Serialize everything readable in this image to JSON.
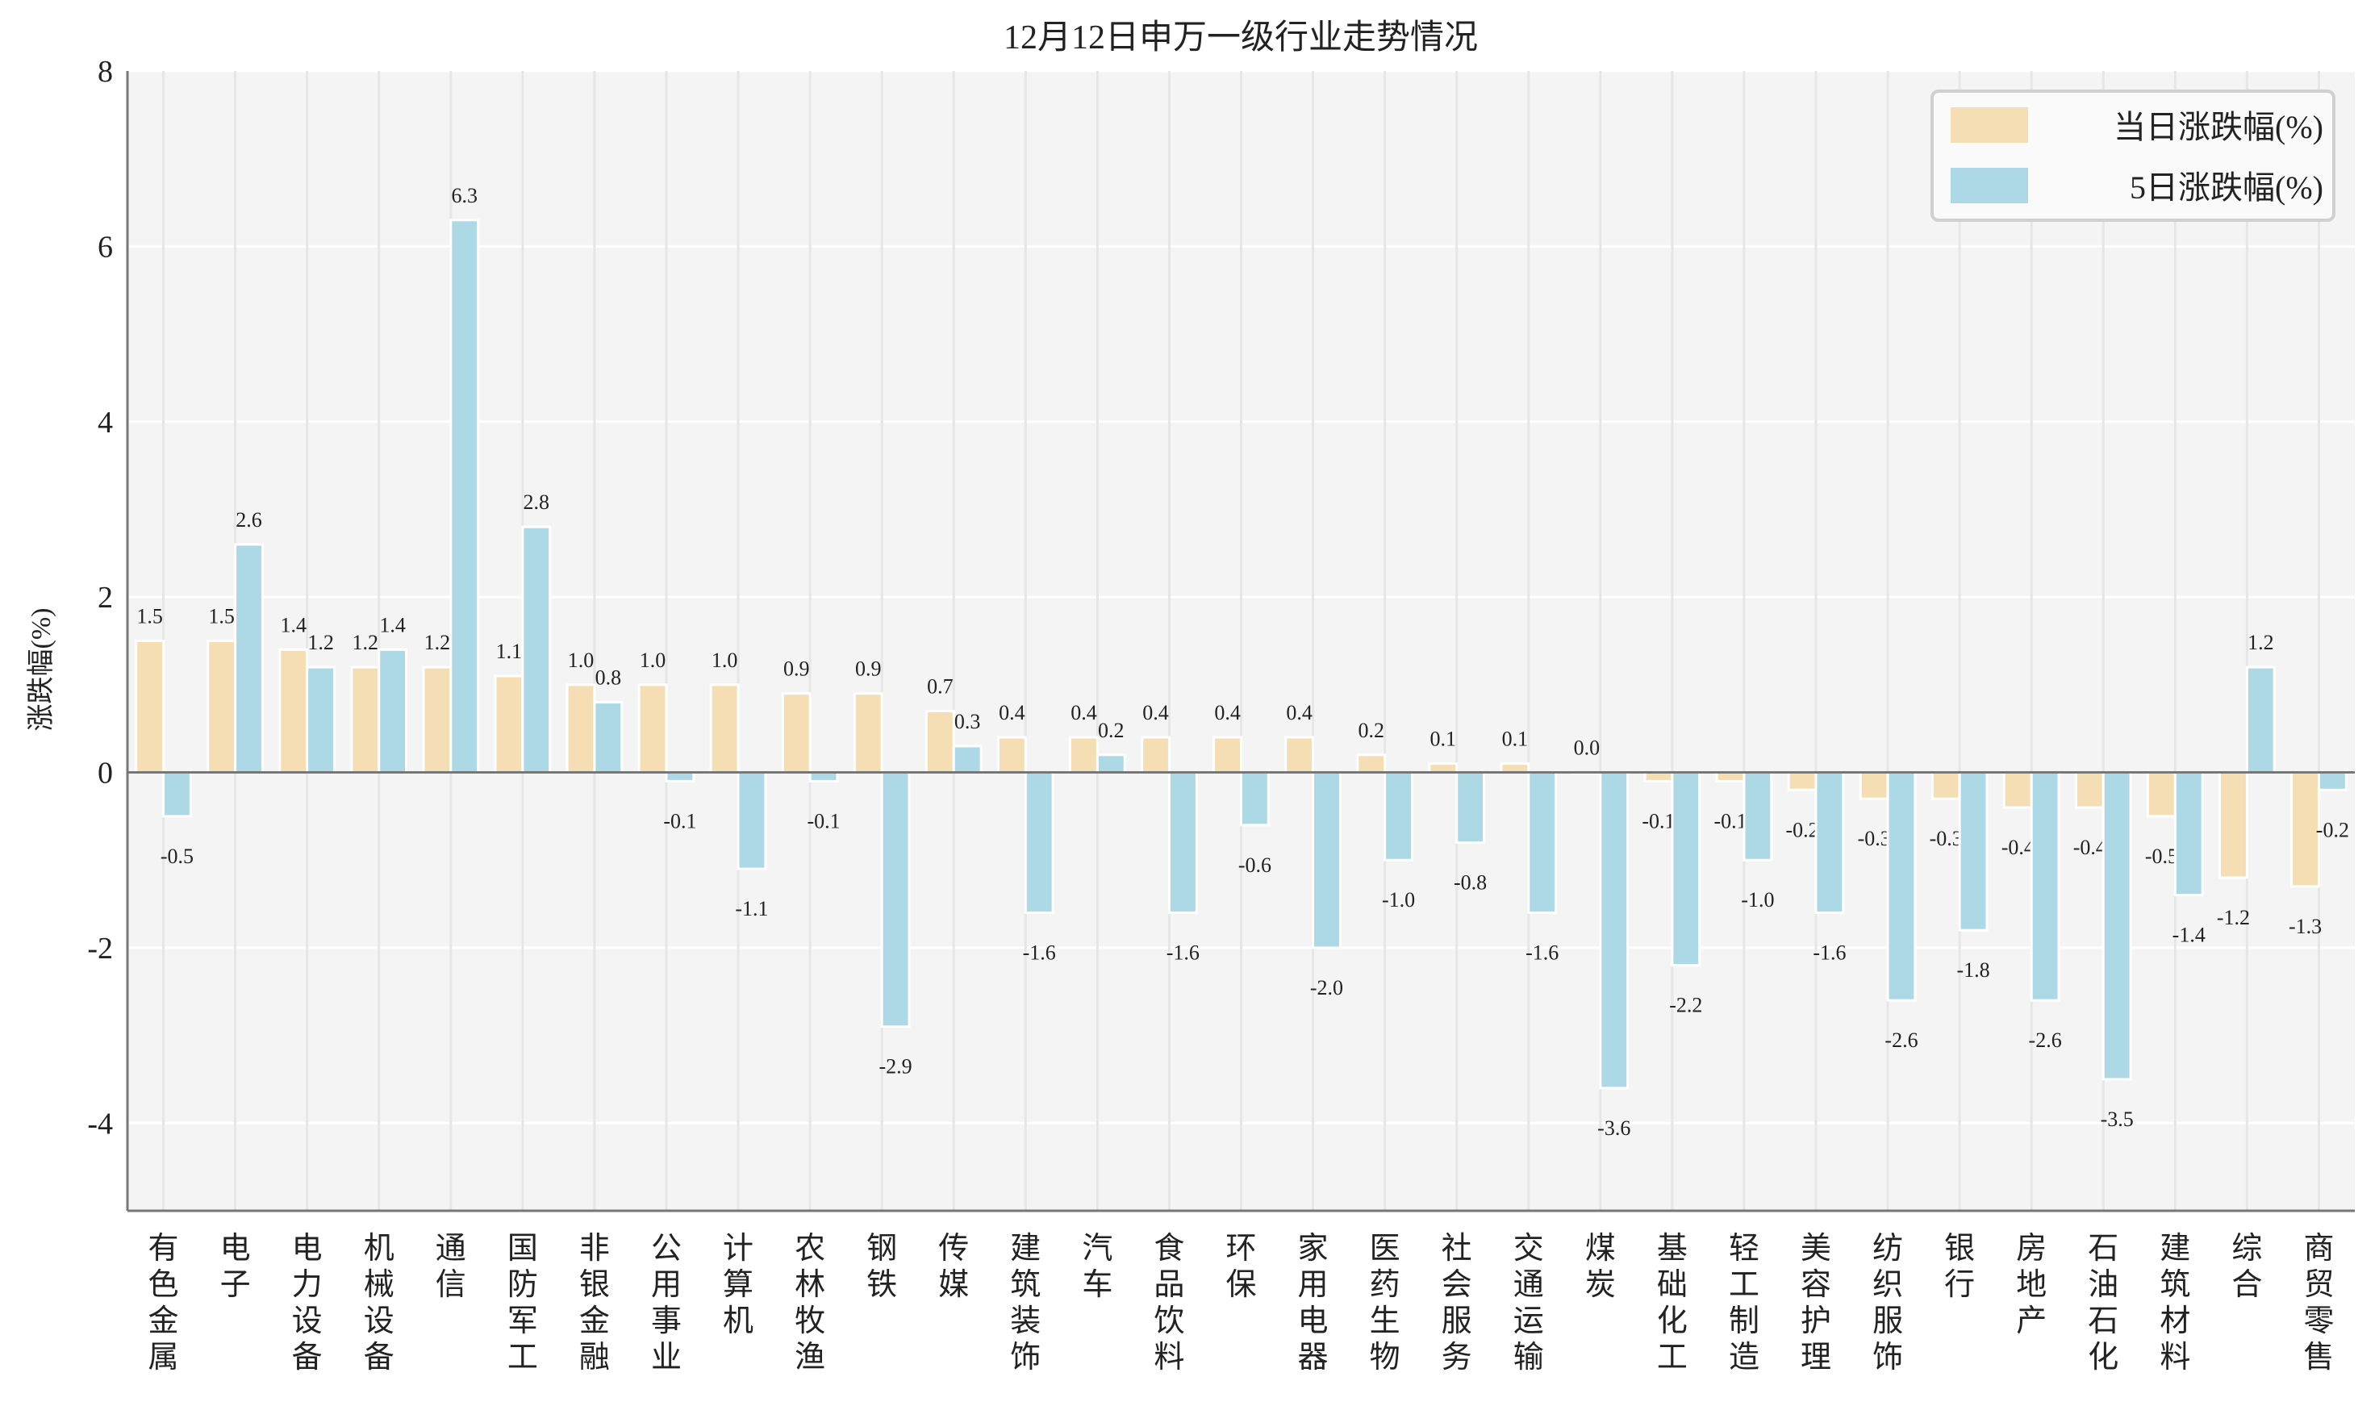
{
  "chart_data": {
    "type": "bar",
    "title": "12月12日申万一级行业走势情况",
    "xlabel": "",
    "ylabel": "涨跌幅(%)",
    "ylim": [
      -5,
      8
    ],
    "yticks": [
      -4,
      -2,
      0,
      2,
      4,
      6,
      8
    ],
    "grid": true,
    "legend_position": "top-right",
    "categories": [
      "有色金属",
      "电子",
      "电力设备",
      "机械设备",
      "通信",
      "国防军工",
      "非银金融",
      "公用事业",
      "计算机",
      "农林牧渔",
      "钢铁",
      "传媒",
      "建筑装饰",
      "汽车",
      "食品饮料",
      "环保",
      "家用电器",
      "医药生物",
      "社会服务",
      "交通运输",
      "煤炭",
      "基础化工",
      "轻工制造",
      "美容护理",
      "纺织服饰",
      "银行",
      "房地产",
      "石油石化",
      "建筑材料",
      "综合",
      "商贸零售"
    ],
    "series": [
      {
        "name": "当日涨跌幅(%)",
        "color": "#f5deb3",
        "values": [
          1.5,
          1.5,
          1.4,
          1.2,
          1.2,
          1.1,
          1.0,
          1.0,
          1.0,
          0.9,
          0.9,
          0.7,
          0.4,
          0.4,
          0.4,
          0.4,
          0.4,
          0.2,
          0.1,
          0.1,
          0.0,
          -0.1,
          -0.1,
          -0.2,
          -0.3,
          -0.3,
          -0.4,
          -0.4,
          -0.5,
          -1.2,
          -1.3
        ]
      },
      {
        "name": "5日涨跌幅(%)",
        "color": "#add8e6",
        "values": [
          -0.5,
          2.6,
          1.2,
          1.4,
          6.3,
          2.8,
          0.8,
          -0.1,
          -1.1,
          -0.1,
          -2.9,
          0.3,
          -1.6,
          0.2,
          -1.6,
          -0.6,
          -2.0,
          -1.0,
          -0.8,
          -1.6,
          -3.6,
          -2.2,
          -1.0,
          -1.6,
          -2.6,
          -1.8,
          -2.6,
          -3.5,
          -1.4,
          1.2,
          -0.2
        ]
      }
    ],
    "plot_background": "#f4f4f4"
  }
}
